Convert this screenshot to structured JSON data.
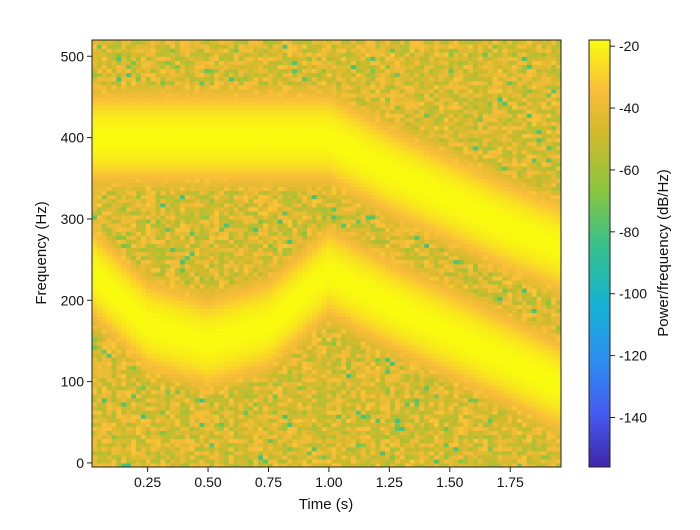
{
  "chart_data": {
    "type": "heatmap",
    "subtype": "spectrogram",
    "title": "",
    "xlabel": "Time (s)",
    "ylabel": "Frequency (Hz)",
    "colorbar_label": "Power/frequency (dB/Hz)",
    "xlim": [
      0.02,
      1.96
    ],
    "ylim": [
      -5,
      520
    ],
    "x_ticks": [
      0.25,
      0.5,
      0.75,
      1.0,
      1.25,
      1.5,
      1.75
    ],
    "x_tick_labels": [
      "0.25",
      "0.50",
      "0.75",
      "1.00",
      "1.25",
      "1.50",
      "1.75"
    ],
    "y_ticks": [
      0,
      100,
      200,
      300,
      400,
      500
    ],
    "y_tick_labels": [
      "0",
      "100",
      "200",
      "300",
      "400",
      "500"
    ],
    "color_range": [
      -156,
      -18
    ],
    "colorbar_ticks": [
      -20,
      -40,
      -60,
      -80,
      -100,
      -120,
      -140
    ],
    "colorbar_tick_labels": [
      "-20",
      "-40",
      "-60",
      "-80",
      "-100",
      "-120",
      "-140"
    ],
    "colormap": "parula",
    "background_level_db": -45,
    "series": [
      {
        "times": [
          0.02,
          0.25,
          0.5,
          0.75,
          1.0,
          1.25,
          1.5,
          1.75,
          1.96
        ],
        "frequencies": [
          400,
          400,
          400,
          400,
          400,
          360,
          325,
          290,
          265
        ],
        "peak_db": -18
      },
      {
        "times": [
          0.02,
          0.25,
          0.5,
          0.75,
          1.0,
          1.25,
          1.5,
          1.75,
          1.96
        ],
        "frequencies": [
          235,
          170,
          148,
          170,
          235,
          195,
          160,
          125,
          95
        ],
        "peak_db": -18
      }
    ]
  }
}
